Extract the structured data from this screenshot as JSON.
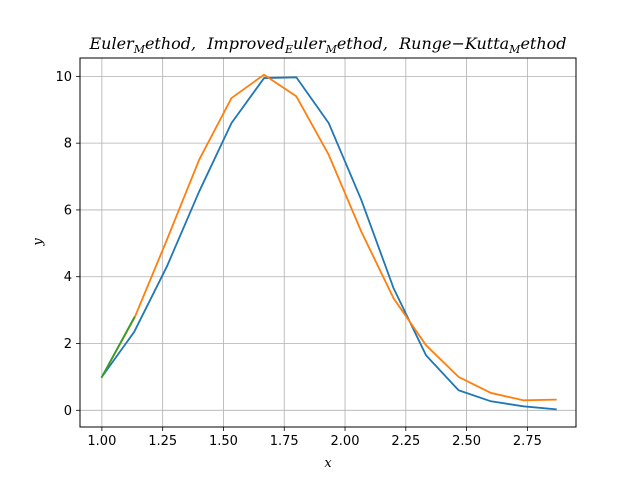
{
  "chart_data": {
    "type": "line",
    "title": "Euler_Method, Improved_Euler_Method, Runge-Kutta_Method",
    "title_parts": {
      "p1": "Euler",
      "p1_sub": "M",
      "p1_rest": "ethod,",
      "p2": "Improved",
      "p2_sub": "E",
      "p2_rest": "uler",
      "p2b_sub": "M",
      "p2b_rest": "ethod,",
      "p3": "Runge−Kutta",
      "p3_sub": "M",
      "p3_rest": "ethod"
    },
    "xlabel": "x",
    "ylabel": "y",
    "xlim": [
      0.91,
      2.95
    ],
    "ylim": [
      -0.5,
      10.55
    ],
    "x_ticks": [
      1.0,
      1.25,
      1.5,
      1.75,
      2.0,
      2.25,
      2.5,
      2.75
    ],
    "x_tick_labels": [
      "1.00",
      "1.25",
      "1.50",
      "1.75",
      "2.00",
      "2.25",
      "2.50",
      "2.75"
    ],
    "y_ticks": [
      0,
      2,
      4,
      6,
      8,
      10
    ],
    "y_tick_labels": [
      "0",
      "2",
      "4",
      "6",
      "8",
      "10"
    ],
    "grid": true,
    "series": [
      {
        "color": "#1f77b4",
        "x": [
          1.0,
          1.133,
          1.267,
          1.4,
          1.533,
          1.667,
          1.8,
          1.933,
          2.067,
          2.2,
          2.333,
          2.467,
          2.6,
          2.733,
          2.867
        ],
        "y": [
          1.0,
          2.35,
          4.3,
          6.55,
          8.6,
          9.95,
          9.97,
          8.6,
          6.3,
          3.65,
          1.65,
          0.6,
          0.27,
          0.12,
          0.03
        ]
      },
      {
        "color": "#ff7f0e",
        "x": [
          1.0,
          1.133,
          1.267,
          1.4,
          1.533,
          1.667,
          1.8,
          1.933,
          2.067,
          2.2,
          2.333,
          2.467,
          2.6,
          2.733,
          2.867
        ],
        "y": [
          1.0,
          2.75,
          5.1,
          7.5,
          9.35,
          10.05,
          9.4,
          7.65,
          5.35,
          3.35,
          1.95,
          1.0,
          0.52,
          0.3,
          0.32
        ]
      },
      {
        "color": "#2ca02c",
        "x": [
          1.0,
          1.133
        ],
        "y": [
          1.0,
          2.78
        ]
      }
    ]
  }
}
